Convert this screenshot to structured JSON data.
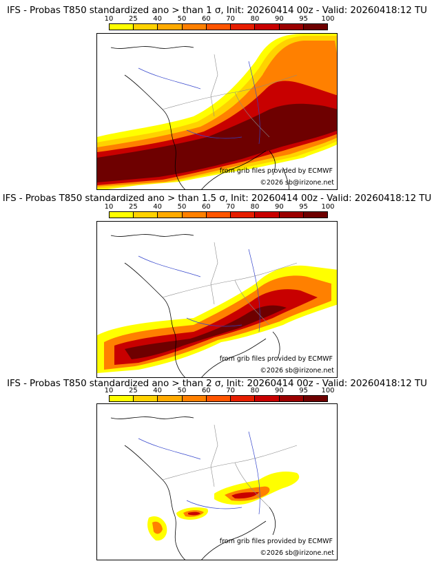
{
  "colorbar": {
    "labels": [
      "10",
      "25",
      "40",
      "50",
      "60",
      "70",
      "80",
      "90",
      "95",
      "100"
    ],
    "colors": [
      "#ffff00",
      "#ffd200",
      "#ffaa00",
      "#ff8000",
      "#ff5500",
      "#e61e00",
      "#c80000",
      "#9b0000",
      "#6e0000"
    ]
  },
  "credits": {
    "source": "from grib files provided by ECMWF",
    "copyright": "©2026 sb@irizone.net"
  },
  "panels": [
    {
      "title": "IFS - Probas T850  standardized ano > than 1 σ, Init: 20260414 00z - Valid: 20260418:12 TU"
    },
    {
      "title": "IFS - Probas T850  standardized ano > than 1.5 σ, Init: 20260414 00z - Valid: 20260418:12 TU"
    },
    {
      "title": "IFS - Probas T850  standardized ano > than 2 σ, Init: 20260414 00z - Valid: 20260418:12 TU"
    }
  ]
}
